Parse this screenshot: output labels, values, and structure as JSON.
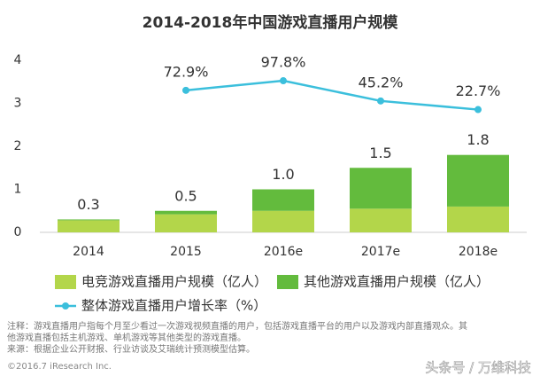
{
  "chart_data": {
    "type": "bar-line",
    "title": "2014-2018年中国游戏直播用户规模",
    "categories": [
      "2014",
      "2015",
      "2016e",
      "2017e",
      "2018e"
    ],
    "series": [
      {
        "name": "电竞游戏直播用户规模（亿人）",
        "color": "#b3d64a",
        "values": [
          0.28,
          0.42,
          0.5,
          0.55,
          0.6
        ]
      },
      {
        "name": "其他游戏直播用户规模（亿人）",
        "color": "#63bb3d",
        "values": [
          0.02,
          0.08,
          0.5,
          0.95,
          1.2
        ]
      },
      {
        "name": "整体游戏直播用户增长率（%）",
        "color": "#3bbfdc",
        "type": "line",
        "axis": "y2",
        "values": [
          null,
          72.9,
          97.8,
          45.2,
          22.7
        ],
        "value_labels": [
          null,
          "72.9%",
          "97.8%",
          "45.2%",
          "22.7%"
        ]
      }
    ],
    "totals": [
      0.3,
      0.5,
      1,
      1.5,
      1.8
    ],
    "total_labels": [
      "0.3",
      "0.5",
      "1.0",
      "1.5",
      "1.8"
    ],
    "ylim": [
      0,
      4
    ],
    "yticks": [
      0,
      1,
      2,
      3,
      4
    ],
    "y2lim": [
      -297,
      151
    ],
    "notes": [
      "注释：游戏直播用户指每个月至少看过一次游戏视频直播的用户，包括游戏直播平台的用户以及游戏内部直播观众。其",
      "他游戏直播包括主机游戏、单机游戏等其他类型的游戏直播。",
      "来源：根据企业公开财报、行业访谈及艾瑞统计预测模型估算。"
    ],
    "copyright": "©2016.7 iResearch Inc.",
    "watermark": "头条号 / 万维科技"
  }
}
